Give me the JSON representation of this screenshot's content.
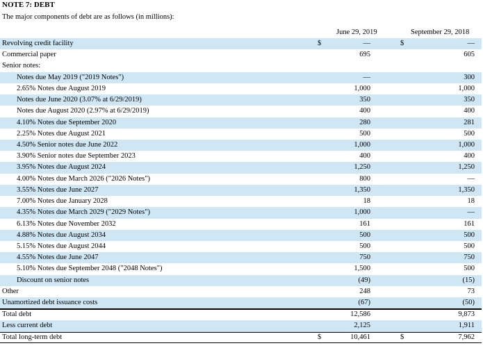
{
  "title": "NOTE 7: DEBT",
  "subtitle": "The major components of debt are as follows (in millions):",
  "columns": [
    "June 29, 2019",
    "September 29, 2018"
  ],
  "currency_symbol": "$",
  "rows": [
    {
      "label": "Revolving credit facility",
      "v1": "—",
      "v2": "—"
    },
    {
      "label": "Commercial paper",
      "v1": "695",
      "v2": "605"
    },
    {
      "label": "Senior notes:",
      "v1": "",
      "v2": ""
    },
    {
      "label": "Notes due May 2019 (\"2019 Notes\")",
      "v1": "—",
      "v2": "300"
    },
    {
      "label": "2.65% Notes due August 2019",
      "v1": "1,000",
      "v2": "1,000"
    },
    {
      "label": "Notes due June 2020 (3.07% at 6/29/2019)",
      "v1": "350",
      "v2": "350"
    },
    {
      "label": "Notes due August 2020 (2.97% at 6/29/2019)",
      "v1": "400",
      "v2": "400"
    },
    {
      "label": "4.10% Notes due September 2020",
      "v1": "280",
      "v2": "281"
    },
    {
      "label": "2.25% Notes due August 2021",
      "v1": "500",
      "v2": "500"
    },
    {
      "label": "4.50% Senior notes due June 2022",
      "v1": "1,000",
      "v2": "1,000"
    },
    {
      "label": "3.90% Senior notes due September 2023",
      "v1": "400",
      "v2": "400"
    },
    {
      "label": "3.95% Notes due August 2024",
      "v1": "1,250",
      "v2": "1,250"
    },
    {
      "label": "4.00% Notes due March 2026 (\"2026 Notes\")",
      "v1": "800",
      "v2": "—"
    },
    {
      "label": "3.55% Notes due June 2027",
      "v1": "1,350",
      "v2": "1,350"
    },
    {
      "label": "7.00% Notes due January 2028",
      "v1": "18",
      "v2": "18"
    },
    {
      "label": "4.35% Notes due March 2029 (\"2029 Notes\")",
      "v1": "1,000",
      "v2": "—"
    },
    {
      "label": "6.13% Notes due November 2032",
      "v1": "161",
      "v2": "161"
    },
    {
      "label": "4.88% Notes due August 2034",
      "v1": "500",
      "v2": "500"
    },
    {
      "label": "5.15% Notes due August 2044",
      "v1": "500",
      "v2": "500"
    },
    {
      "label": "4.55% Notes due June 2047",
      "v1": "750",
      "v2": "750"
    },
    {
      "label": "5.10% Notes due September 2048 (\"2048 Notes\")",
      "v1": "1,500",
      "v2": "500"
    },
    {
      "label": "Discount on senior notes",
      "v1": "(49)",
      "v2": "(15)"
    },
    {
      "label": "Other",
      "v1": "248",
      "v2": "73"
    },
    {
      "label": "Unamortized debt issuance costs",
      "v1": "(67)",
      "v2": "(50)"
    },
    {
      "label": "Total debt",
      "v1": "12,586",
      "v2": "9,873"
    },
    {
      "label": "Less current debt",
      "v1": "2,125",
      "v2": "1,911"
    },
    {
      "label": "Total long-term debt",
      "v1": "10,461",
      "v2": "7,962"
    }
  ]
}
